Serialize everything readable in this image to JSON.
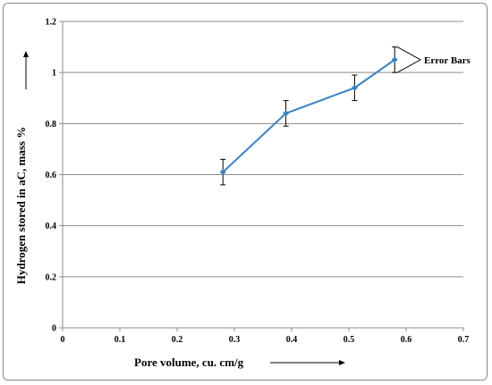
{
  "chart_data": {
    "type": "line",
    "title": "",
    "xlabel": "Pore volume, cu. cm/g",
    "ylabel": "Hydrogen stored in aC, mass %",
    "xlim": [
      0,
      0.7
    ],
    "ylim": [
      0,
      1.2
    ],
    "x_ticks": [
      "0",
      "0.1",
      "0.2",
      "0.3",
      "0.4",
      "0.5",
      "0.6",
      "0.7"
    ],
    "y_ticks": [
      "0",
      "0.2",
      "0.4",
      "0.6",
      "0.8",
      "1",
      "1.2"
    ],
    "grid": "horizontal",
    "series": [
      {
        "x": [
          0.28,
          0.39,
          0.51,
          0.58
        ],
        "y": [
          0.61,
          0.84,
          0.94,
          1.05
        ],
        "error": [
          0.05,
          0.05,
          0.05,
          0.05
        ],
        "color": "#3d82bf"
      }
    ],
    "annotations": [
      {
        "text": "Error Bars"
      }
    ]
  }
}
